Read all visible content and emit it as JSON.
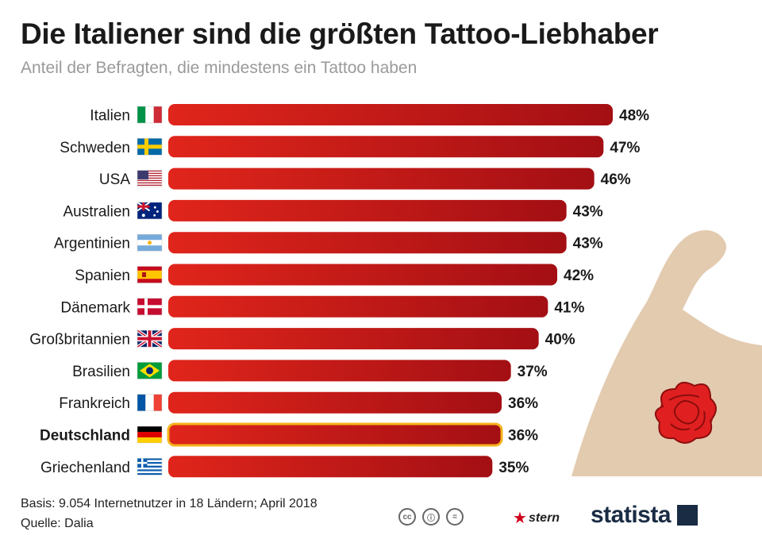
{
  "title": "Die Italiener sind die größten Tattoo-Liebhaber",
  "subtitle": "Anteil der Befragten, die mindestens ein Tattoo haben",
  "footer": {
    "basis": "Basis: 9.054 Internetnutzer in 18 Ländern; April 2018",
    "source": "Quelle: Dalia",
    "brand_stern": "stern",
    "brand_statista": "statista"
  },
  "colors": {
    "bar_start": "#e0251b",
    "bar_end": "#a30f14",
    "highlight_outline": "#f5b31b",
    "arm_skin": "#e3cbb0",
    "rose": "#d11a1a"
  },
  "chart_data": {
    "type": "bar",
    "orientation": "horizontal",
    "unit": "%",
    "xlim": [
      0,
      48
    ],
    "highlight": "Deutschland",
    "categories": [
      "Italien",
      "Schweden",
      "USA",
      "Australien",
      "Argentinien",
      "Spanien",
      "Dänemark",
      "Großbritannien",
      "Brasilien",
      "Frankreich",
      "Deutschland",
      "Griechenland"
    ],
    "values": [
      48,
      47,
      46,
      43,
      43,
      42,
      41,
      40,
      37,
      36,
      36,
      35
    ],
    "value_labels": [
      "48%",
      "47%",
      "46%",
      "43%",
      "43%",
      "42%",
      "41%",
      "40%",
      "37%",
      "36%",
      "36%",
      "35%"
    ],
    "flags": [
      "italy-flag",
      "sweden-flag",
      "usa-flag",
      "australia-flag",
      "argentina-flag",
      "spain-flag",
      "denmark-flag",
      "uk-flag",
      "brazil-flag",
      "france-flag",
      "germany-flag",
      "greece-flag"
    ]
  }
}
